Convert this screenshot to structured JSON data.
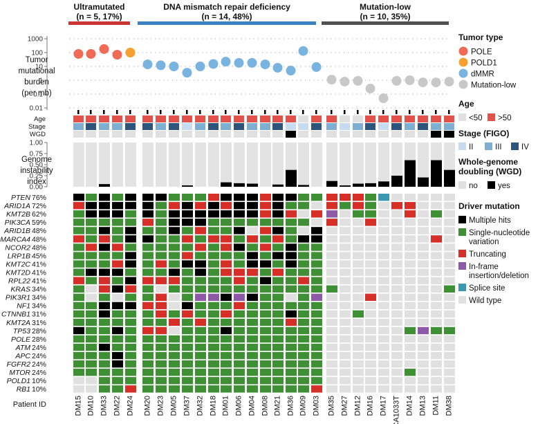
{
  "groups": [
    {
      "label": "Ultramutated",
      "n_label": "(n = 5, 17%)",
      "color": "#cc3333"
    },
    {
      "label": "DNA mismatch repair deficiency",
      "n_label": "(n = 14, 48%)",
      "color": "#3b82c4"
    },
    {
      "label": "Mutation-low",
      "n_label": "(n = 10, 35%)",
      "color": "#505050"
    }
  ],
  "patient_id_label": "Patient ID",
  "patients": [
    [
      "DM15",
      "DM10",
      "DM33",
      "DM22",
      "DM24"
    ],
    [
      "DM20",
      "DM23",
      "DM05",
      "DM37",
      "DM32",
      "DM18",
      "DM01",
      "DM06",
      "DM04",
      "DM08",
      "DM21",
      "DM36",
      "DM09",
      "DM03"
    ],
    [
      "DM35",
      "DM27",
      "DM12",
      "DM16",
      "DM17",
      "CA1033T",
      "DM14",
      "DM13",
      "DM11",
      "DM38"
    ]
  ],
  "chart_data": {
    "type": "oncoprint",
    "tmb": {
      "ylabel_lines": [
        "Tumor",
        "mutational",
        "burden",
        "(per mb)"
      ],
      "scale": "log10",
      "ticks": [
        "1000",
        "100",
        "10",
        "1",
        "0.1",
        "0.01"
      ],
      "tick_values": [
        1000,
        100,
        10,
        1,
        0.1,
        0.01
      ],
      "values": [
        [
          80,
          80,
          180,
          70,
          100
        ],
        [
          14,
          12,
          10,
          3.5,
          10,
          15,
          22,
          18,
          18,
          14,
          8,
          5,
          130,
          9
        ],
        [
          1.1,
          0.8,
          0.9,
          0.25,
          0.05,
          0.9,
          1.0,
          0.7,
          0.7,
          0.8
        ]
      ],
      "types": [
        [
          "POLE",
          "POLE",
          "POLE",
          "POLE",
          "POLD1"
        ],
        [
          "dMMR",
          "dMMR",
          "dMMR",
          "dMMR",
          "dMMR",
          "dMMR",
          "dMMR",
          "dMMR",
          "dMMR",
          "dMMR",
          "dMMR",
          "dMMR",
          "dMMR",
          "dMMR"
        ],
        [
          "Mutation-low",
          "Mutation-low",
          "Mutation-low",
          "Mutation-low",
          "Mutation-low",
          "Mutation-low",
          "Mutation-low",
          "Mutation-low",
          "Mutation-low",
          "Mutation-low"
        ]
      ]
    },
    "clinical": {
      "row_labels": [
        "Age",
        "Stage",
        "WGD"
      ],
      "age": [
        [
          1,
          1,
          1,
          1,
          1
        ],
        [
          1,
          1,
          1,
          1,
          1,
          1,
          1,
          1,
          1,
          1,
          1,
          1,
          0,
          1
        ],
        [
          1,
          0,
          0,
          1,
          1,
          1,
          1,
          1,
          1,
          1
        ]
      ],
      "stage": [
        [
          "III",
          "IV",
          "III",
          "III",
          "IV"
        ],
        [
          "IV",
          "III",
          "IV",
          "II",
          "III",
          "IV",
          "III",
          "IV",
          "III",
          "III",
          "IV",
          "II",
          "II",
          "IV"
        ],
        [
          "III",
          "II",
          "III",
          "IV",
          "II",
          "IV",
          "III",
          "IV",
          "III",
          "III"
        ]
      ],
      "wgd": [
        [
          0,
          0,
          0,
          0,
          0
        ],
        [
          0,
          0,
          0,
          0,
          0,
          0,
          0,
          0,
          0,
          0,
          0,
          1,
          0,
          0
        ],
        [
          0,
          0,
          0,
          0,
          0,
          0,
          0,
          0,
          1,
          1
        ]
      ]
    },
    "gii": {
      "ylabel_lines": [
        "Genome",
        "instability",
        "index"
      ],
      "ticks": [
        "1.00",
        "0.75",
        "0.50",
        "0.25",
        "0.00"
      ],
      "tick_values": [
        1,
        0.75,
        0.5,
        0.25,
        0
      ],
      "values": [
        [
          0,
          0,
          0.06,
          0,
          0
        ],
        [
          0,
          0,
          0,
          0.03,
          0,
          0,
          0.1,
          0.08,
          0.07,
          0,
          0.05,
          0.38,
          0.04,
          0
        ],
        [
          0.13,
          0.03,
          0.07,
          0.08,
          0.12,
          0.25,
          0.6,
          0.21,
          0.6,
          0.38
        ]
      ]
    },
    "genes": [
      "PTEN",
      "ARID1A",
      "KMT2B",
      "PIK3CA",
      "ARID1B",
      "SMARCA4",
      "NCOR2",
      "LRP1B",
      "KMT2C",
      "KMT2D",
      "RPL22",
      "KRAS",
      "PIK3R1",
      "NF1",
      "CTNNB1",
      "KMT2A",
      "TP53",
      "POLE",
      "ATM",
      "APC",
      "FGFR2",
      "MTOR",
      "POLD1",
      "RB1"
    ],
    "gene_pcts": [
      "76%",
      "72%",
      "62%",
      "59%",
      "48%",
      "48%",
      "48%",
      "45%",
      "41%",
      "41%",
      "41%",
      "34%",
      "34%",
      "34%",
      "31%",
      "31%",
      "28%",
      "28%",
      "24%",
      "24%",
      "24%",
      "24%",
      "10%",
      "10%"
    ],
    "mutation_codes": {
      "0": "Wild type",
      "1": "Single-nucleotide variation",
      "2": "Truncating",
      "3": "Multiple hits",
      "4": "In-frame insertion/deletion",
      "5": "Splice site"
    },
    "mutations": [
      [
        "1333313333333333300010000",
        "1323333221323332331301022",
        "1023323331333210321001022",
        "1133313222211320213031212",
        "1101312111211231201000000",
        "2012333230123310203000000",
        "1000122131333010220000000",
        "1021331111221021312000000",
        "1333013003221112331011000",
        "0311332221111211112000000",
        "1012011312222110112000101",
        "0001003023211230203000000",
        "1011022313211000201000000",
        "0301000000000000000000000",
        "0302000000000000000000000",
        "0001000000000000000000000",
        "3100000000000000000000000",
        "0000000000000000000000000",
        "1101000000000000000000000",
        "1332000000000000000000000",
        "1110000000000000000000000",
        "1101000000000000000000000",
        "0011000000000000000000000",
        "0002000000000000000000000"
      ]
    ],
    "mutations_cols": [
      [
        "31313",
        "23333",
        "13331",
        "11111",
        "11313",
        "21213",
        "12321",
        "11113",
        "11123",
        "13331",
        "21213",
        "10232",
        "10101",
        "11333",
        "11311",
        "11111",
        "31131",
        "11111",
        "11311",
        "11131",
        "11131",
        "11111",
        "00111",
        "00112"
      ],
      [
        "33111233323311",
        "31232323323110",
        "31333333323202",
        "21333111111110",
        "11312113023103",
        "31121221212133",
        "11112123121311",
        "11121111313311",
        "12133121331311",
        "11313122212111",
        "22211112131121",
        "10111111111111",
        "12014434311014",
        "22031112111111",
        "12121121111311",
        "11212111111211",
        "22011131111111",
        "11111111111111",
        "11111111111111",
        "11111111111111",
        "11111111111111",
        "11111111111111",
        "11111111111111",
        "11111111111112"
      ],
      [
        "2221500000",
        "2121022000",
        "4011002010",
        "2002000000",
        "0000000000",
        "0000000020",
        "0000000000",
        "0000000000",
        "0000000000",
        "0000000000",
        "0000000000",
        "1000000001",
        "0002000000",
        "0000000000",
        "0010000000",
        "0000000000",
        "0000001411",
        "0000000000",
        "0000000000",
        "0000000000",
        "0000000000",
        "0000001000",
        "0000000000",
        "0000000000"
      ]
    ]
  },
  "legend": {
    "tumor_type": {
      "title": "Tumor type",
      "items": [
        {
          "label": "POLE",
          "color": "#ef6b55"
        },
        {
          "label": "POLD1",
          "color": "#f5a030"
        },
        {
          "label": "dMMR",
          "color": "#79b3e0"
        },
        {
          "label": "Mutation-low",
          "color": "#c8c8c8"
        }
      ]
    },
    "age": {
      "title": "Age",
      "items": [
        {
          "label": "<50",
          "color": "#e0e0e0"
        },
        {
          "label": ">50",
          "color": "#e2514a"
        }
      ]
    },
    "stage": {
      "title": "Stage (FIGO)",
      "items": [
        {
          "label": "II",
          "color": "#c6dbef"
        },
        {
          "label": "III",
          "color": "#7eaed2"
        },
        {
          "label": "IV",
          "color": "#2d557b"
        }
      ]
    },
    "wgd": {
      "title_lines": [
        "Whole-genome",
        "doubling (WGD)"
      ],
      "items": [
        {
          "label": "no",
          "color": "#e0e0e0"
        },
        {
          "label": "yes",
          "color": "#000000"
        }
      ]
    },
    "driver": {
      "title": "Driver mutation",
      "items": [
        {
          "lines": [
            "Multiple hits"
          ],
          "color": "#000000"
        },
        {
          "lines": [
            "Single-nucleotide",
            "variation"
          ],
          "color": "#3f8f34"
        },
        {
          "lines": [
            "Truncating"
          ],
          "color": "#d62f27"
        },
        {
          "lines": [
            "In-frame",
            "insertion/deletion"
          ],
          "color": "#8e5aa8"
        },
        {
          "lines": [
            "Splice site"
          ],
          "color": "#3a98b0"
        },
        {
          "lines": [
            "Wild type"
          ],
          "color": "#e0e0e0"
        }
      ]
    }
  }
}
